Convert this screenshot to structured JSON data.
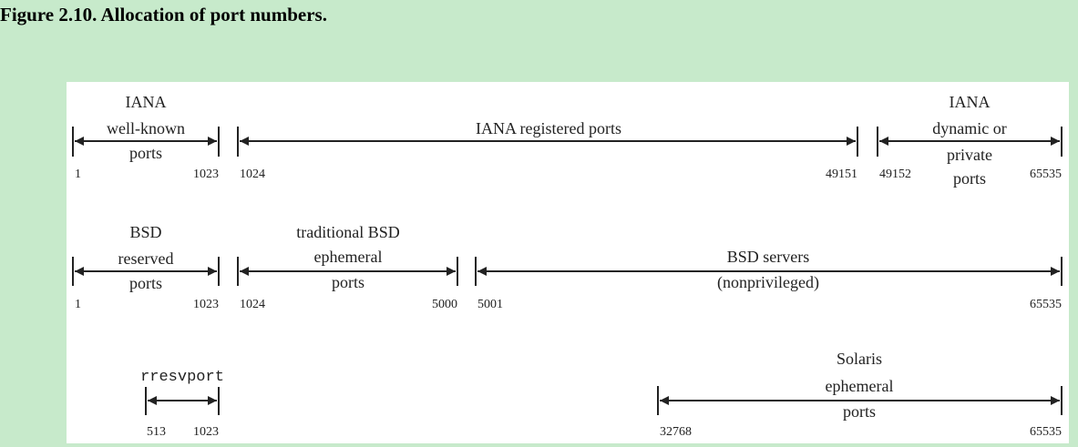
{
  "figure": {
    "title": "Figure 2.10. Allocation of port numbers."
  },
  "rows": [
    {
      "segments": [
        {
          "label": [
            "IANA",
            "well-known",
            "ports"
          ],
          "start": "1",
          "end": "1023"
        },
        {
          "label": [
            "IANA registered ports"
          ],
          "start": "1024",
          "end": "49151"
        },
        {
          "label": [
            "IANA",
            "dynamic or",
            "private",
            "ports"
          ],
          "start": "49152",
          "end": "65535"
        }
      ]
    },
    {
      "segments": [
        {
          "label": [
            "BSD",
            "reserved",
            "ports"
          ],
          "start": "1",
          "end": "1023"
        },
        {
          "label": [
            "traditional BSD",
            "ephemeral",
            "ports"
          ],
          "start": "1024",
          "end": "5000"
        },
        {
          "label": [
            "BSD servers",
            "(nonprivileged)"
          ],
          "start": "5001",
          "end": "65535"
        }
      ]
    },
    {
      "segments": [
        {
          "label": [
            "rresvport"
          ],
          "start": "513",
          "end": "1023"
        },
        {
          "label": [
            "Solaris",
            "ephemeral",
            "ports"
          ],
          "start": "32768",
          "end": "65535"
        }
      ]
    }
  ]
}
